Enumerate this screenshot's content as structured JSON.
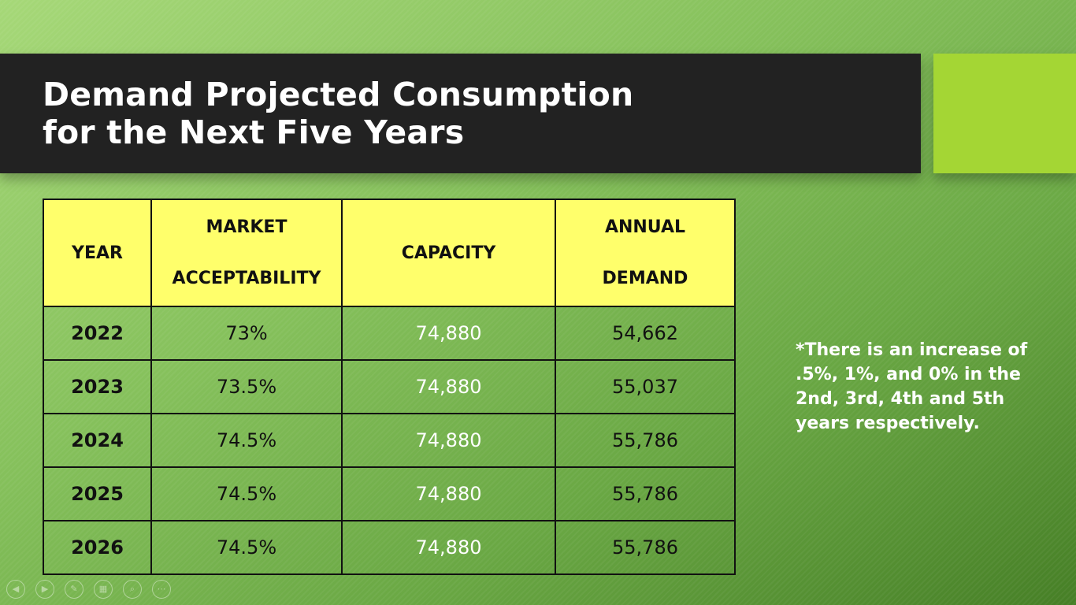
{
  "title": {
    "line1": "Demand Projected Consumption",
    "line2": "for the Next Five Years"
  },
  "table": {
    "headers": {
      "year": "YEAR",
      "market_line1": "MARKET",
      "market_line2": "ACCEPTABILITY",
      "capacity": "CAPACITY",
      "annual_line1": "ANNUAL",
      "annual_line2": "DEMAND"
    },
    "rows": [
      {
        "year": "2022",
        "market": "73%",
        "capacity": "74,880",
        "demand": "54,662"
      },
      {
        "year": "2023",
        "market": "73.5%",
        "capacity": "74,880",
        "demand": "55,037"
      },
      {
        "year": "2024",
        "market": "74.5%",
        "capacity": "74,880",
        "demand": "55,786"
      },
      {
        "year": "2025",
        "market": "74.5%",
        "capacity": "74,880",
        "demand": "55,786"
      },
      {
        "year": "2026",
        "market": "74.5%",
        "capacity": "74,880",
        "demand": "55,786"
      }
    ]
  },
  "note": {
    "line1": "*There is an increase of",
    "line2": ".5%, 1%, and 0% in the",
    "line3": "2nd, 3rd, 4th and 5th",
    "line4": "years respectively."
  },
  "colors": {
    "title_bar": "#222222",
    "accent": "#a4d634",
    "header_fill": "#ffff6b"
  },
  "controls": [
    {
      "name": "previous-slide-icon",
      "glyph": "◀"
    },
    {
      "name": "next-slide-icon",
      "glyph": "▶"
    },
    {
      "name": "pen-icon",
      "glyph": "✎"
    },
    {
      "name": "slides-grid-icon",
      "glyph": "▦"
    },
    {
      "name": "zoom-icon",
      "glyph": "⌕"
    },
    {
      "name": "more-options-icon",
      "glyph": "⋯"
    }
  ]
}
